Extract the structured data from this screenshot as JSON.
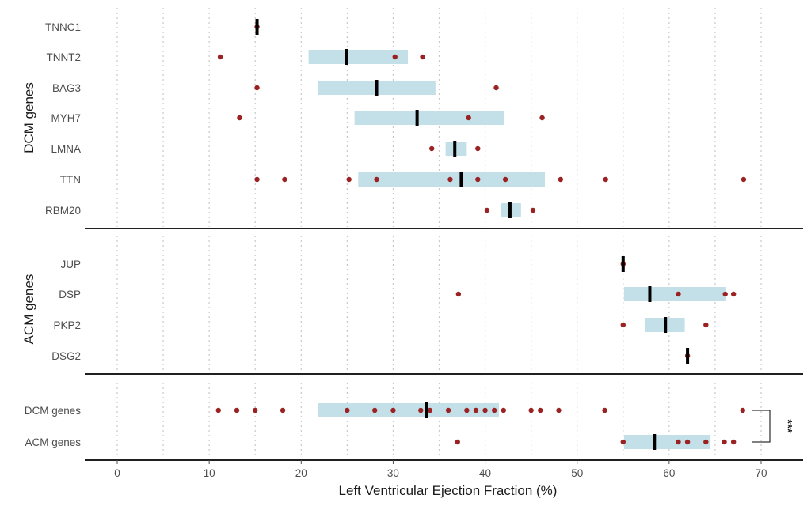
{
  "chart_data": {
    "type": "scatter",
    "xlabel": "Left Ventricular Ejection Fraction (%)",
    "xlim": [
      -3.5,
      75
    ],
    "x_ticks": [
      0,
      10,
      20,
      30,
      40,
      50,
      60,
      70
    ],
    "grid": "vertical dotted lines every 5",
    "colors": {
      "iqr_box": "#c3e0e9",
      "point": "#9b2222",
      "median": "#000000",
      "grid": "#c8c8c8"
    },
    "panels": [
      {
        "title": "DCM genes",
        "rows": [
          {
            "label": "TNNC1",
            "q1": null,
            "q3": null,
            "median": 15.2,
            "points": [
              15.2
            ]
          },
          {
            "label": "TNNT2",
            "q1": 20.8,
            "q3": 31.6,
            "median": 24.9,
            "points": [
              11.2,
              30.2,
              33.2
            ]
          },
          {
            "label": "BAG3",
            "q1": 21.8,
            "q3": 34.6,
            "median": 28.2,
            "points": [
              15.2,
              41.2
            ]
          },
          {
            "label": "MYH7",
            "q1": 25.8,
            "q3": 42.1,
            "median": 32.6,
            "points": [
              13.3,
              38.2,
              46.2
            ]
          },
          {
            "label": "LMNA",
            "q1": 35.7,
            "q3": 38.0,
            "median": 36.7,
            "points": [
              34.2,
              39.2
            ]
          },
          {
            "label": "TTN",
            "q1": 26.2,
            "q3": 46.5,
            "median": 37.4,
            "points": [
              15.2,
              18.2,
              25.2,
              28.2,
              36.2,
              39.2,
              42.2,
              48.2,
              53.1,
              68.1
            ]
          },
          {
            "label": "RBM20",
            "q1": 41.7,
            "q3": 43.9,
            "median": 42.7,
            "points": [
              40.2,
              45.2
            ]
          }
        ]
      },
      {
        "title": "ACM genes",
        "rows": [
          {
            "label": "JUP",
            "q1": null,
            "q3": null,
            "median": 55.0,
            "points": [
              55.0
            ]
          },
          {
            "label": "DSP",
            "q1": 55.1,
            "q3": 66.2,
            "median": 57.9,
            "points": [
              37.1,
              61.0,
              66.1,
              67.0
            ]
          },
          {
            "label": "PKP2",
            "q1": 57.4,
            "q3": 61.7,
            "median": 59.6,
            "points": [
              55.0,
              64.0
            ]
          },
          {
            "label": "DSG2",
            "q1": null,
            "q3": null,
            "median": 62.0,
            "points": [
              62.0
            ]
          }
        ]
      },
      {
        "title": "",
        "rows": [
          {
            "label": "DCM genes",
            "q1": 21.8,
            "q3": 41.5,
            "median": 33.6,
            "points": [
              11.0,
              13.0,
              15.0,
              18.0,
              25.0,
              28.0,
              30.0,
              33.0,
              34.0,
              36.0,
              38.0,
              39.0,
              40.0,
              41.0,
              42.0,
              45.0,
              46.0,
              48.0,
              53.0,
              68.0
            ]
          },
          {
            "label": "ACM genes",
            "q1": 55.1,
            "q3": 64.5,
            "median": 58.4,
            "points": [
              37.0,
              55.0,
              61.0,
              62.0,
              64.0,
              66.0,
              67.0
            ]
          }
        ]
      }
    ],
    "annotations": [
      {
        "text": "***",
        "between": [
          "DCM genes",
          "ACM genes"
        ]
      }
    ]
  }
}
